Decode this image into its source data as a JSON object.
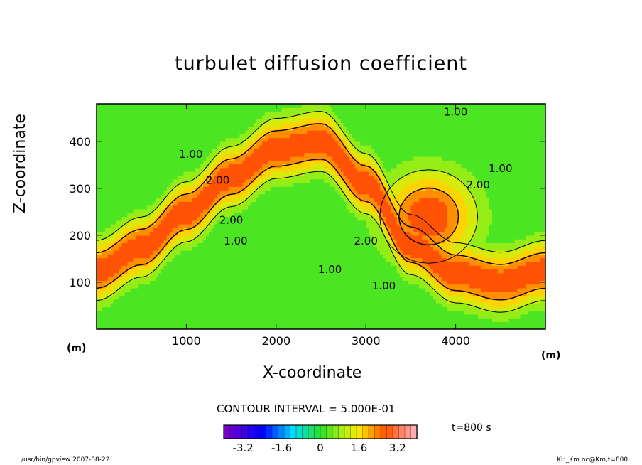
{
  "chart_data": {
    "type": "heatmap",
    "subtype": "filled-contour",
    "title": "turbulet diffusion coefficient",
    "xlabel": "X-coordinate",
    "ylabel": "Z-coordinate",
    "x_unit": "(m)",
    "y_unit": "(m)",
    "xlim": [
      0,
      5000
    ],
    "ylim": [
      0,
      480
    ],
    "x_ticks": [
      1000,
      2000,
      3000,
      4000
    ],
    "y_ticks": [
      100,
      200,
      300,
      400
    ],
    "contour_interval_text": "CONTOUR INTERVAL = 5.000E-01",
    "contour_interval": 0.5,
    "contour_labels": [
      {
        "text": "1.00",
        "x": 1050,
        "z": 365
      },
      {
        "text": "2.00",
        "x": 1350,
        "z": 310
      },
      {
        "text": "2.00",
        "x": 1500,
        "z": 225
      },
      {
        "text": "1.00",
        "x": 1550,
        "z": 180
      },
      {
        "text": "1.00",
        "x": 4000,
        "z": 455
      },
      {
        "text": "1.00",
        "x": 4500,
        "z": 335
      },
      {
        "text": "2.00",
        "x": 4250,
        "z": 300
      },
      {
        "text": "2.00",
        "x": 3000,
        "z": 180
      },
      {
        "text": "1.00",
        "x": 2600,
        "z": 120
      },
      {
        "text": "1.00",
        "x": 3200,
        "z": 85
      }
    ],
    "colorbar": {
      "ticks": [
        "-3.2",
        "-1.6",
        "0",
        "1.6",
        "3.2"
      ],
      "range": [
        -4.0,
        4.0
      ],
      "levels": 32
    },
    "time_text": "t=800 s",
    "max_value_approx": 3.0
  },
  "footer": {
    "left": "/usr/bin/gpview  2007-08-22",
    "right": "KH_Km.nc@Km,t=800"
  },
  "colors": {
    "background": "#ffffff",
    "axis": "#000000"
  }
}
